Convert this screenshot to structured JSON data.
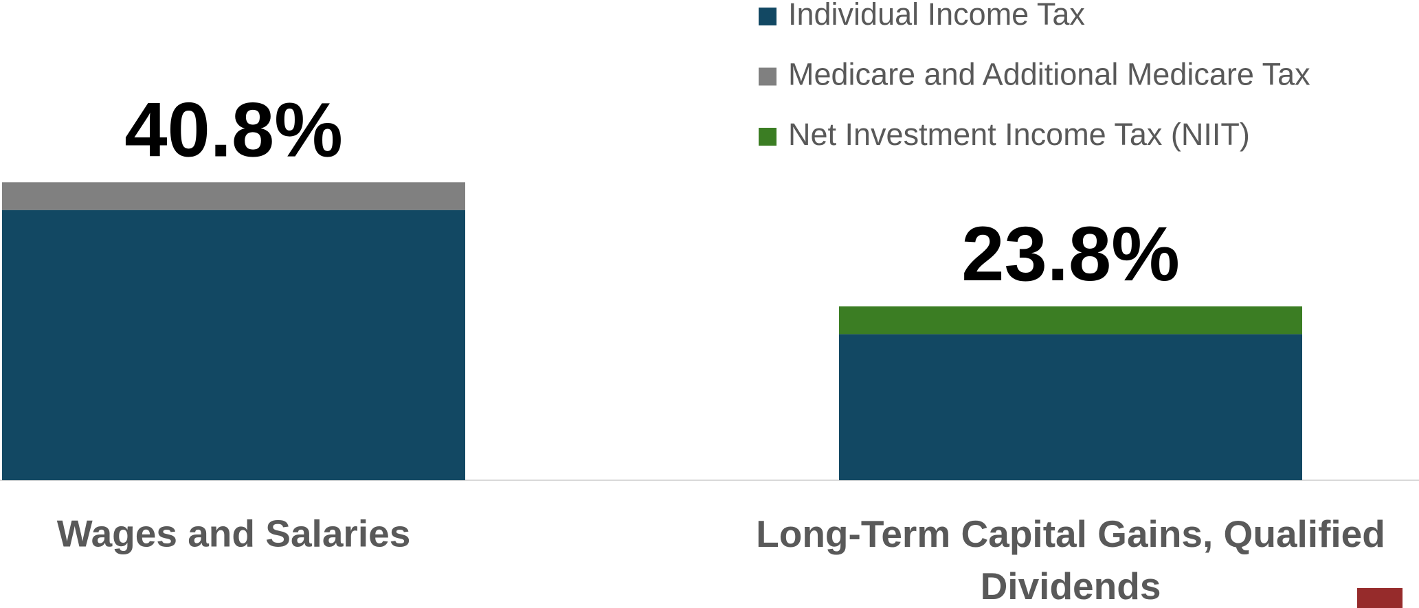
{
  "chart_data": {
    "type": "stacked_bar",
    "categories": [
      "Wages and Salaries",
      "Long-Term Capital Gains, Qualified Dividends"
    ],
    "series": [
      {
        "name": "Individual Income Tax",
        "color": "#124863",
        "values": [
          37,
          20
        ]
      },
      {
        "name": "Medicare and Additional Medicare Tax",
        "color": "#808080",
        "values": [
          3.8,
          null
        ]
      },
      {
        "name": "Net Investment Income Tax (NIIT)",
        "color": "#3b7d23",
        "values": [
          null,
          3.8
        ]
      }
    ],
    "totals": [
      40.8,
      23.8
    ],
    "total_labels": [
      "40.8%",
      "23.8%"
    ],
    "legend": "top-right"
  }
}
